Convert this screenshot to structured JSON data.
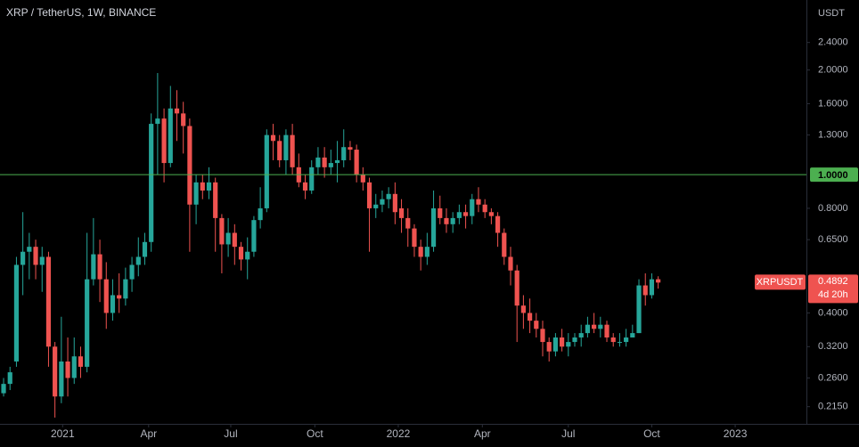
{
  "chart_data": {
    "type": "candlestick",
    "title": "XRP / TetherUS, 1W, BINANCE",
    "y_label": "USDT",
    "log_scale": true,
    "grid": false,
    "up_color": "#26a69a",
    "down_color": "#ef5350",
    "ylim": [
      0.193,
      3.18
    ],
    "yticks": [
      {
        "value": 2.4,
        "label": "2.4000"
      },
      {
        "value": 2.0,
        "label": "2.0000"
      },
      {
        "value": 1.6,
        "label": "1.6000"
      },
      {
        "value": 1.3,
        "label": "1.3000"
      },
      {
        "value": 0.8,
        "label": "0.8000"
      },
      {
        "value": 0.65,
        "label": "0.6500"
      },
      {
        "value": 0.4,
        "label": "0.4000"
      },
      {
        "value": 0.32,
        "label": "0.3200"
      },
      {
        "value": 0.26,
        "label": "0.2600"
      },
      {
        "value": 0.215,
        "label": "0.2150"
      }
    ],
    "xlim": [
      -0.56,
      125.1
    ],
    "xticks": [
      {
        "value": 9.2,
        "label": "2021"
      },
      {
        "value": 22.6,
        "label": "Apr"
      },
      {
        "value": 35.4,
        "label": "Jul"
      },
      {
        "value": 48.5,
        "label": "Oct"
      },
      {
        "value": 61.5,
        "label": "2022"
      },
      {
        "value": 74.6,
        "label": "Apr"
      },
      {
        "value": 88.0,
        "label": "Jul"
      },
      {
        "value": 101.0,
        "label": "Oct"
      },
      {
        "value": 114.0,
        "label": "2023"
      }
    ],
    "open": [
      0.235,
      0.25,
      0.29,
      0.55,
      0.6,
      0.62,
      0.55,
      0.58,
      0.32,
      0.23,
      0.29,
      0.26,
      0.3,
      0.28,
      0.5,
      0.59,
      0.5,
      0.4,
      0.45,
      0.44,
      0.5,
      0.55,
      0.58,
      0.64,
      1.4,
      1.45,
      1.08,
      1.55,
      1.5,
      1.38,
      0.82,
      0.95,
      0.9,
      0.95,
      0.75,
      0.63,
      0.68,
      0.62,
      0.57,
      0.6,
      0.74,
      0.8,
      1.3,
      1.25,
      1.1,
      1.3,
      1.05,
      0.95,
      0.9,
      1.05,
      1.12,
      1.05,
      1.08,
      1.1,
      1.2,
      1.18,
      1.0,
      0.95,
      0.8,
      0.82,
      0.85,
      0.88,
      0.8,
      0.75,
      0.7,
      0.62,
      0.58,
      0.62,
      0.8,
      0.75,
      0.72,
      0.75,
      0.78,
      0.76,
      0.85,
      0.82,
      0.78,
      0.76,
      0.68,
      0.58,
      0.53,
      0.42,
      0.4,
      0.38,
      0.36,
      0.33,
      0.31,
      0.34,
      0.32,
      0.33,
      0.34,
      0.35,
      0.37,
      0.36,
      0.37,
      0.34,
      0.33,
      0.33,
      0.34,
      0.35,
      0.48,
      0.45,
      0.5
    ],
    "high": [
      0.26,
      0.28,
      0.58,
      0.78,
      0.68,
      0.65,
      0.62,
      0.6,
      0.33,
      0.39,
      0.34,
      0.34,
      0.32,
      0.68,
      0.75,
      0.65,
      0.56,
      0.5,
      0.52,
      0.54,
      0.58,
      0.66,
      0.68,
      1.5,
      1.96,
      1.55,
      1.8,
      1.75,
      1.62,
      1.45,
      1.0,
      1.0,
      1.05,
      0.98,
      0.77,
      0.75,
      0.72,
      0.64,
      0.66,
      0.76,
      0.92,
      1.35,
      1.4,
      1.3,
      1.35,
      1.4,
      1.15,
      1.0,
      1.1,
      1.2,
      1.2,
      1.18,
      1.25,
      1.35,
      1.25,
      1.22,
      1.05,
      0.98,
      0.88,
      0.9,
      0.92,
      0.95,
      0.85,
      0.8,
      0.72,
      0.65,
      0.68,
      0.9,
      0.87,
      0.8,
      0.78,
      0.82,
      0.82,
      0.88,
      0.92,
      0.85,
      0.8,
      0.78,
      0.7,
      0.62,
      0.55,
      0.45,
      0.44,
      0.4,
      0.38,
      0.34,
      0.35,
      0.36,
      0.35,
      0.35,
      0.37,
      0.39,
      0.4,
      0.39,
      0.38,
      0.35,
      0.35,
      0.36,
      0.37,
      0.5,
      0.52,
      0.52,
      0.51
    ],
    "low": [
      0.23,
      0.24,
      0.28,
      0.45,
      0.5,
      0.5,
      0.46,
      0.28,
      0.2,
      0.22,
      0.23,
      0.25,
      0.26,
      0.27,
      0.48,
      0.43,
      0.36,
      0.38,
      0.4,
      0.42,
      0.46,
      0.51,
      0.55,
      0.6,
      1.0,
      0.95,
      1.05,
      1.25,
      1.15,
      0.6,
      0.72,
      0.85,
      0.85,
      0.6,
      0.52,
      0.58,
      0.55,
      0.53,
      0.5,
      0.58,
      0.7,
      0.78,
      1.1,
      1.05,
      1.0,
      1.0,
      0.92,
      0.85,
      0.88,
      1.0,
      0.98,
      1.0,
      0.95,
      1.05,
      1.1,
      0.95,
      0.9,
      0.6,
      0.75,
      0.78,
      0.8,
      0.72,
      0.68,
      0.62,
      0.58,
      0.53,
      0.55,
      0.6,
      0.72,
      0.68,
      0.68,
      0.72,
      0.7,
      0.72,
      0.78,
      0.75,
      0.72,
      0.62,
      0.55,
      0.48,
      0.33,
      0.36,
      0.35,
      0.34,
      0.3,
      0.29,
      0.3,
      0.31,
      0.3,
      0.32,
      0.32,
      0.34,
      0.35,
      0.34,
      0.33,
      0.32,
      0.32,
      0.32,
      0.34,
      0.35,
      0.42,
      0.44,
      0.47
    ],
    "close": [
      0.25,
      0.27,
      0.55,
      0.6,
      0.62,
      0.55,
      0.58,
      0.32,
      0.23,
      0.29,
      0.26,
      0.3,
      0.28,
      0.5,
      0.59,
      0.5,
      0.4,
      0.45,
      0.44,
      0.5,
      0.55,
      0.58,
      0.64,
      1.4,
      1.45,
      1.08,
      1.55,
      1.5,
      1.38,
      0.82,
      0.95,
      0.9,
      0.95,
      0.75,
      0.63,
      0.68,
      0.62,
      0.57,
      0.6,
      0.74,
      0.8,
      1.3,
      1.25,
      1.1,
      1.3,
      1.05,
      0.95,
      0.9,
      1.05,
      1.12,
      1.05,
      1.08,
      1.1,
      1.2,
      1.18,
      1.0,
      0.95,
      0.8,
      0.82,
      0.85,
      0.88,
      0.78,
      0.75,
      0.7,
      0.62,
      0.58,
      0.62,
      0.8,
      0.75,
      0.72,
      0.75,
      0.78,
      0.76,
      0.85,
      0.82,
      0.78,
      0.76,
      0.68,
      0.58,
      0.53,
      0.42,
      0.4,
      0.38,
      0.36,
      0.33,
      0.31,
      0.34,
      0.32,
      0.33,
      0.34,
      0.35,
      0.37,
      0.36,
      0.37,
      0.34,
      0.33,
      0.33,
      0.34,
      0.35,
      0.48,
      0.45,
      0.5,
      0.4892
    ],
    "horizontal_line": {
      "value": 1.0,
      "label": "1.0000",
      "color": "#4caf50"
    },
    "last_price": {
      "symbol": "XRPUSDT",
      "value": 0.4892,
      "value_label": "0.4892",
      "countdown": "4d 20h"
    }
  }
}
